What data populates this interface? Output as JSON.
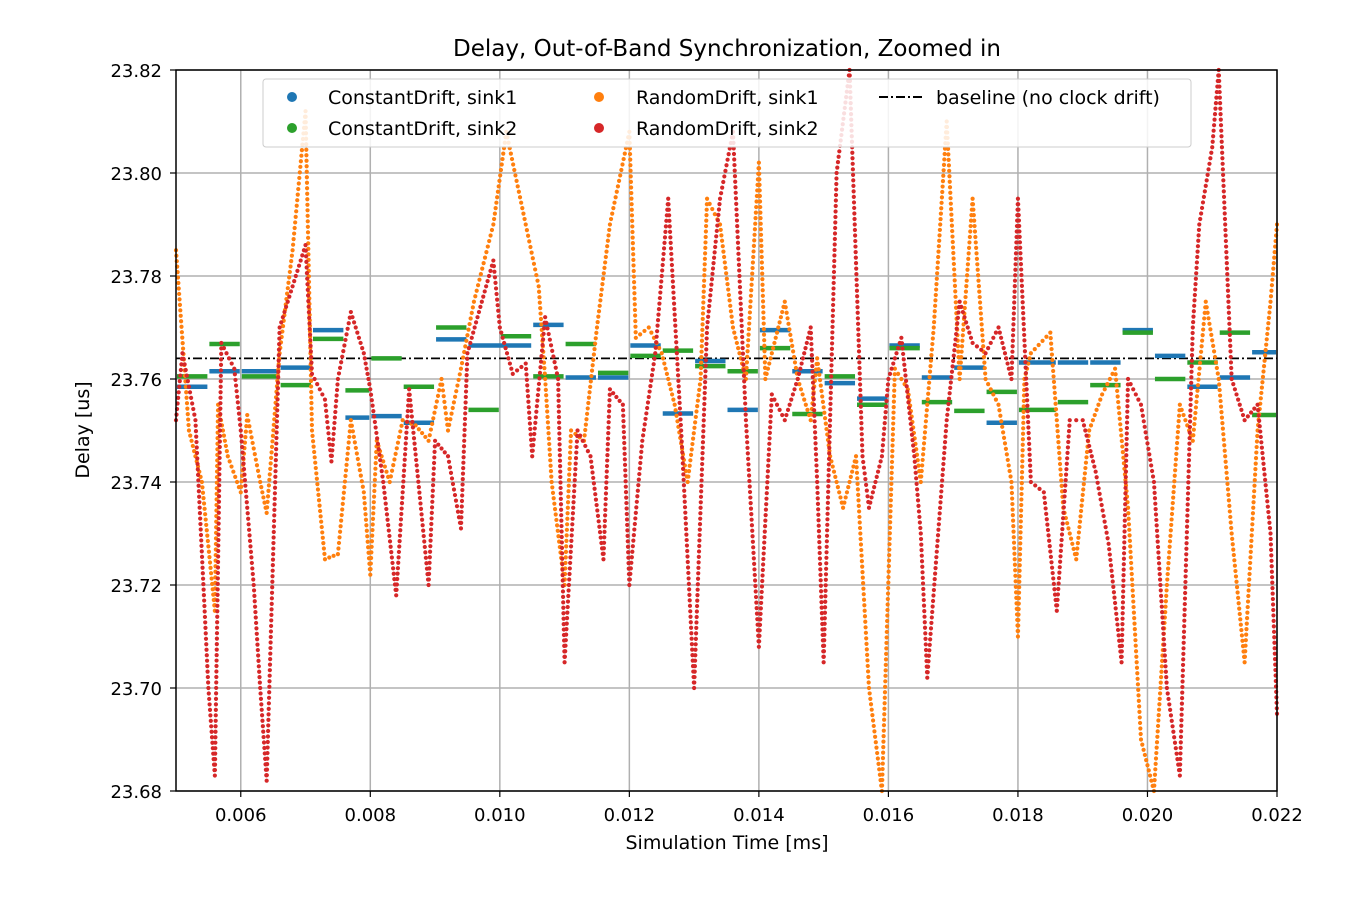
{
  "chart_data": {
    "type": "scatter",
    "title": "Delay, Out-of-Band Synchronization, Zoomed in",
    "xlabel": "Simulation Time [ms]",
    "ylabel": "Delay [us]",
    "xlim": [
      0.005,
      0.022
    ],
    "ylim": [
      23.68,
      23.82
    ],
    "x_ticks": [
      "0.006",
      "0.008",
      "0.010",
      "0.012",
      "0.014",
      "0.016",
      "0.018",
      "0.020",
      "0.022"
    ],
    "y_ticks": [
      "23.68",
      "23.70",
      "23.72",
      "23.74",
      "23.76",
      "23.78",
      "23.80",
      "23.82"
    ],
    "grid": true,
    "legend_position": "top-center",
    "baseline": {
      "name": "baseline (no clock drift)",
      "value": 23.764,
      "style": "dash-dot",
      "color": "#000000"
    },
    "series": [
      {
        "name": "ConstantDrift, sink1",
        "color": "#1f77b4",
        "style": "steps",
        "segments": [
          [
            0.005,
            0.0055,
            23.7585
          ],
          [
            0.0055,
            0.006,
            23.7615
          ],
          [
            0.006,
            0.0066,
            23.7615
          ],
          [
            0.0066,
            0.0071,
            23.7622
          ],
          [
            0.0071,
            0.0076,
            23.7695
          ],
          [
            0.0076,
            0.008,
            23.7525
          ],
          [
            0.008,
            0.0085,
            23.7528
          ],
          [
            0.0085,
            0.009,
            23.7515
          ],
          [
            0.009,
            0.0095,
            23.7677
          ],
          [
            0.0095,
            0.0105,
            23.7665
          ],
          [
            0.0105,
            0.011,
            23.7705
          ],
          [
            0.011,
            0.0115,
            23.7603
          ],
          [
            0.0115,
            0.012,
            23.7603
          ],
          [
            0.012,
            0.0125,
            23.7665
          ],
          [
            0.0125,
            0.013,
            23.7533
          ],
          [
            0.013,
            0.0135,
            23.7635
          ],
          [
            0.0135,
            0.014,
            23.754
          ],
          [
            0.014,
            0.0145,
            23.7695
          ],
          [
            0.0145,
            0.015,
            23.7615
          ],
          [
            0.015,
            0.0155,
            23.7592
          ],
          [
            0.0155,
            0.016,
            23.7562
          ],
          [
            0.016,
            0.0165,
            23.7665
          ],
          [
            0.0165,
            0.017,
            23.7603
          ],
          [
            0.017,
            0.0175,
            23.7622
          ],
          [
            0.0175,
            0.018,
            23.7515
          ],
          [
            0.018,
            0.0186,
            23.7632
          ],
          [
            0.0186,
            0.0191,
            23.7632
          ],
          [
            0.0191,
            0.0196,
            23.7632
          ],
          [
            0.0196,
            0.0201,
            23.7695
          ],
          [
            0.0201,
            0.0206,
            23.7645
          ],
          [
            0.0206,
            0.0211,
            23.7585
          ],
          [
            0.0211,
            0.0216,
            23.7603
          ],
          [
            0.0216,
            0.022,
            23.7652
          ]
        ]
      },
      {
        "name": "ConstantDrift, sink2",
        "color": "#2ca02c",
        "style": "steps",
        "segments": [
          [
            0.005,
            0.0055,
            23.7605
          ],
          [
            0.0055,
            0.006,
            23.7668
          ],
          [
            0.006,
            0.0066,
            23.7605
          ],
          [
            0.0066,
            0.0071,
            23.7588
          ],
          [
            0.0071,
            0.0076,
            23.7678
          ],
          [
            0.0076,
            0.008,
            23.7578
          ],
          [
            0.008,
            0.0085,
            23.764
          ],
          [
            0.0085,
            0.009,
            23.7585
          ],
          [
            0.009,
            0.0095,
            23.77
          ],
          [
            0.0095,
            0.01,
            23.754
          ],
          [
            0.01,
            0.0105,
            23.7683
          ],
          [
            0.0105,
            0.011,
            23.7605
          ],
          [
            0.011,
            0.0115,
            23.7668
          ],
          [
            0.0115,
            0.012,
            23.7612
          ],
          [
            0.012,
            0.0125,
            23.7645
          ],
          [
            0.0125,
            0.013,
            23.7655
          ],
          [
            0.013,
            0.0135,
            23.7625
          ],
          [
            0.0135,
            0.014,
            23.7615
          ],
          [
            0.014,
            0.0145,
            23.766
          ],
          [
            0.0145,
            0.015,
            23.7532
          ],
          [
            0.015,
            0.0155,
            23.7605
          ],
          [
            0.0155,
            0.016,
            23.755
          ],
          [
            0.016,
            0.0165,
            23.766
          ],
          [
            0.0165,
            0.017,
            23.7555
          ],
          [
            0.017,
            0.0175,
            23.7538
          ],
          [
            0.0175,
            0.018,
            23.7575
          ],
          [
            0.018,
            0.0186,
            23.754
          ],
          [
            0.0186,
            0.0191,
            23.7555
          ],
          [
            0.0191,
            0.0196,
            23.7588
          ],
          [
            0.0196,
            0.0201,
            23.769
          ],
          [
            0.0201,
            0.0206,
            23.76
          ],
          [
            0.0206,
            0.0211,
            23.7632
          ],
          [
            0.0211,
            0.0216,
            23.769
          ],
          [
            0.0216,
            0.022,
            23.753
          ]
        ]
      },
      {
        "name": "RandomDrift, sink1",
        "color": "#ff7f0e",
        "style": "dots",
        "points": [
          [
            0.005,
            23.785
          ],
          [
            0.0052,
            23.75
          ],
          [
            0.0054,
            23.74
          ],
          [
            0.0056,
            23.715
          ],
          [
            0.00565,
            23.755
          ],
          [
            0.0058,
            23.745
          ],
          [
            0.006,
            23.738
          ],
          [
            0.0061,
            23.753
          ],
          [
            0.0063,
            23.74
          ],
          [
            0.0064,
            23.734
          ],
          [
            0.0066,
            23.765
          ],
          [
            0.0068,
            23.785
          ],
          [
            0.007,
            23.812
          ],
          [
            0.0071,
            23.75
          ],
          [
            0.0073,
            23.725
          ],
          [
            0.0075,
            23.726
          ],
          [
            0.0077,
            23.752
          ],
          [
            0.0079,
            23.738
          ],
          [
            0.008,
            23.722
          ],
          [
            0.0081,
            23.748
          ],
          [
            0.0083,
            23.74
          ],
          [
            0.0085,
            23.752
          ],
          [
            0.0087,
            23.751
          ],
          [
            0.0089,
            23.748
          ],
          [
            0.0091,
            23.76
          ],
          [
            0.0092,
            23.75
          ],
          [
            0.0094,
            23.762
          ],
          [
            0.0096,
            23.775
          ],
          [
            0.0099,
            23.79
          ],
          [
            0.0101,
            23.808
          ],
          [
            0.0104,
            23.79
          ],
          [
            0.0106,
            23.778
          ],
          [
            0.0107,
            23.76
          ],
          [
            0.0108,
            23.74
          ],
          [
            0.011,
            23.72
          ],
          [
            0.0111,
            23.75
          ],
          [
            0.0113,
            23.748
          ],
          [
            0.0115,
            23.77
          ],
          [
            0.0117,
            23.79
          ],
          [
            0.012,
            23.808
          ],
          [
            0.0121,
            23.768
          ],
          [
            0.0123,
            23.77
          ],
          [
            0.0125,
            23.765
          ],
          [
            0.0127,
            23.755
          ],
          [
            0.0129,
            23.74
          ],
          [
            0.0131,
            23.76
          ],
          [
            0.0132,
            23.795
          ],
          [
            0.0134,
            23.79
          ],
          [
            0.0136,
            23.77
          ],
          [
            0.0138,
            23.76
          ],
          [
            0.014,
            23.802
          ],
          [
            0.0141,
            23.76
          ],
          [
            0.0143,
            23.77
          ],
          [
            0.0144,
            23.775
          ],
          [
            0.0146,
            23.76
          ],
          [
            0.0148,
            23.752
          ],
          [
            0.0149,
            23.764
          ],
          [
            0.0151,
            23.745
          ],
          [
            0.0153,
            23.735
          ],
          [
            0.0155,
            23.745
          ],
          [
            0.0157,
            23.7
          ],
          [
            0.0159,
            23.68
          ],
          [
            0.0161,
            23.762
          ],
          [
            0.0163,
            23.758
          ],
          [
            0.0165,
            23.74
          ],
          [
            0.0167,
            23.77
          ],
          [
            0.0169,
            23.81
          ],
          [
            0.0171,
            23.76
          ],
          [
            0.0173,
            23.795
          ],
          [
            0.0175,
            23.76
          ],
          [
            0.0177,
            23.755
          ],
          [
            0.0179,
            23.74
          ],
          [
            0.018,
            23.71
          ],
          [
            0.0181,
            23.76
          ],
          [
            0.0182,
            23.765
          ],
          [
            0.0185,
            23.769
          ],
          [
            0.0187,
            23.735
          ],
          [
            0.0189,
            23.725
          ],
          [
            0.0191,
            23.75
          ],
          [
            0.0193,
            23.757
          ],
          [
            0.0195,
            23.762
          ],
          [
            0.0197,
            23.735
          ],
          [
            0.0199,
            23.69
          ],
          [
            0.0201,
            23.68
          ],
          [
            0.0203,
            23.72
          ],
          [
            0.0205,
            23.755
          ],
          [
            0.0207,
            23.748
          ],
          [
            0.0209,
            23.775
          ],
          [
            0.0211,
            23.76
          ],
          [
            0.0213,
            23.73
          ],
          [
            0.0215,
            23.705
          ],
          [
            0.0217,
            23.75
          ],
          [
            0.0219,
            23.775
          ],
          [
            0.022,
            23.79
          ]
        ]
      },
      {
        "name": "RandomDrift, sink2",
        "color": "#d62728",
        "style": "dots",
        "points": [
          [
            0.005,
            23.752
          ],
          [
            0.0051,
            23.765
          ],
          [
            0.0053,
            23.752
          ],
          [
            0.0055,
            23.7
          ],
          [
            0.0056,
            23.683
          ],
          [
            0.0057,
            23.767
          ],
          [
            0.0059,
            23.762
          ],
          [
            0.006,
            23.75
          ],
          [
            0.0062,
            23.72
          ],
          [
            0.0063,
            23.7
          ],
          [
            0.0064,
            23.682
          ],
          [
            0.0066,
            23.77
          ],
          [
            0.0068,
            23.778
          ],
          [
            0.007,
            23.786
          ],
          [
            0.0071,
            23.761
          ],
          [
            0.0073,
            23.756
          ],
          [
            0.0074,
            23.744
          ],
          [
            0.0075,
            23.76
          ],
          [
            0.0077,
            23.773
          ],
          [
            0.0079,
            23.765
          ],
          [
            0.008,
            23.758
          ],
          [
            0.0082,
            23.74
          ],
          [
            0.0084,
            23.718
          ],
          [
            0.0086,
            23.758
          ],
          [
            0.0089,
            23.72
          ],
          [
            0.009,
            23.748
          ],
          [
            0.0092,
            23.745
          ],
          [
            0.0094,
            23.731
          ],
          [
            0.0095,
            23.765
          ],
          [
            0.0097,
            23.774
          ],
          [
            0.0099,
            23.783
          ],
          [
            0.01,
            23.77
          ],
          [
            0.0102,
            23.761
          ],
          [
            0.0104,
            23.763
          ],
          [
            0.0105,
            23.745
          ],
          [
            0.0107,
            23.772
          ],
          [
            0.0109,
            23.76
          ],
          [
            0.011,
            23.705
          ],
          [
            0.0112,
            23.75
          ],
          [
            0.0114,
            23.745
          ],
          [
            0.0116,
            23.725
          ],
          [
            0.0117,
            23.758
          ],
          [
            0.0119,
            23.755
          ],
          [
            0.012,
            23.72
          ],
          [
            0.0122,
            23.748
          ],
          [
            0.0124,
            23.765
          ],
          [
            0.0126,
            23.795
          ],
          [
            0.0128,
            23.75
          ],
          [
            0.013,
            23.7
          ],
          [
            0.0132,
            23.77
          ],
          [
            0.0134,
            23.795
          ],
          [
            0.0136,
            23.808
          ],
          [
            0.0138,
            23.752
          ],
          [
            0.014,
            23.708
          ],
          [
            0.0142,
            23.757
          ],
          [
            0.0144,
            23.752
          ],
          [
            0.0146,
            23.76
          ],
          [
            0.0148,
            23.77
          ],
          [
            0.0149,
            23.74
          ],
          [
            0.015,
            23.705
          ],
          [
            0.0152,
            23.8
          ],
          [
            0.0154,
            23.82
          ],
          [
            0.0156,
            23.745
          ],
          [
            0.0157,
            23.735
          ],
          [
            0.0159,
            23.745
          ],
          [
            0.016,
            23.76
          ],
          [
            0.0162,
            23.768
          ],
          [
            0.0164,
            23.745
          ],
          [
            0.0165,
            23.73
          ],
          [
            0.0166,
            23.702
          ],
          [
            0.0169,
            23.752
          ],
          [
            0.0171,
            23.775
          ],
          [
            0.0173,
            23.767
          ],
          [
            0.0175,
            23.765
          ],
          [
            0.0177,
            23.77
          ],
          [
            0.0179,
            23.76
          ],
          [
            0.018,
            23.795
          ],
          [
            0.0182,
            23.74
          ],
          [
            0.0184,
            23.738
          ],
          [
            0.0186,
            23.715
          ],
          [
            0.0188,
            23.752
          ],
          [
            0.019,
            23.752
          ],
          [
            0.0192,
            23.742
          ],
          [
            0.0194,
            23.728
          ],
          [
            0.0196,
            23.705
          ],
          [
            0.0197,
            23.76
          ],
          [
            0.0199,
            23.755
          ],
          [
            0.0201,
            23.74
          ],
          [
            0.0203,
            23.7
          ],
          [
            0.0205,
            23.683
          ],
          [
            0.0207,
            23.77
          ],
          [
            0.0208,
            23.79
          ],
          [
            0.021,
            23.805
          ],
          [
            0.0211,
            23.82
          ],
          [
            0.0213,
            23.76
          ],
          [
            0.0215,
            23.752
          ],
          [
            0.0217,
            23.755
          ],
          [
            0.0219,
            23.73
          ],
          [
            0.022,
            23.695
          ]
        ]
      }
    ]
  }
}
